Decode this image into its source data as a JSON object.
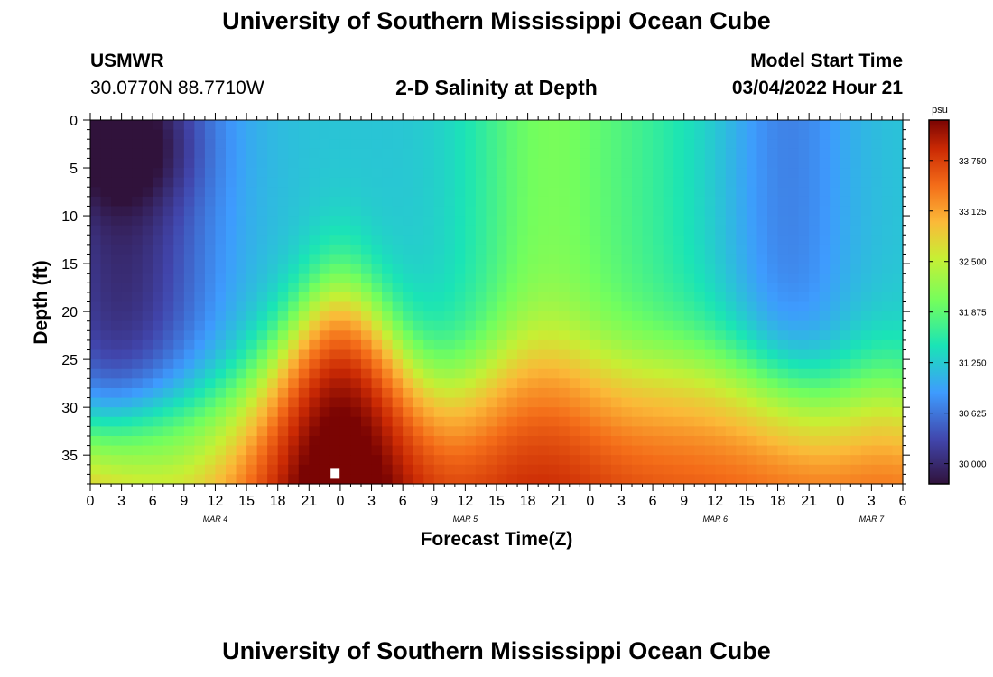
{
  "page": {
    "title_top": "University of Southern Mississippi Ocean Cube",
    "title_bottom": "University of Southern Mississippi Ocean Cube",
    "station": "USMWR",
    "coords": "30.0770N  88.7710W",
    "subtitle": "2-D Salinity at Depth",
    "model_start_label": "Model Start Time",
    "model_start_value": "03/04/2022 Hour 21"
  },
  "chart_data": {
    "type": "heatmap",
    "title": "2-D Salinity at Depth",
    "xlabel": "Forecast Time(Z)",
    "ylabel": "Depth (ft)",
    "x_range_hours": [
      0,
      78
    ],
    "y_range_ft": [
      0,
      38
    ],
    "x_ticks": [
      "0",
      "3",
      "6",
      "9",
      "12",
      "15",
      "18",
      "21",
      "0",
      "3",
      "6",
      "9",
      "12",
      "15",
      "18",
      "21",
      "0",
      "3",
      "6",
      "9",
      "12",
      "15",
      "18",
      "21",
      "0",
      "3",
      "6"
    ],
    "y_ticks": [
      0,
      5,
      10,
      15,
      20,
      25,
      30,
      35
    ],
    "date_labels": [
      {
        "text": "MAR 4",
        "hour": 12
      },
      {
        "text": "MAR 5",
        "hour": 36
      },
      {
        "text": "MAR 6",
        "hour": 60
      },
      {
        "text": "MAR 7",
        "hour": 75
      }
    ],
    "colorbar": {
      "unit": "psu",
      "min": 29.75,
      "max": 34.25,
      "ticks": [
        "33.750",
        "33.125",
        "32.500",
        "31.875",
        "31.250",
        "30.625",
        "30.000"
      ]
    },
    "marker": {
      "hour": 23.5,
      "depth_ft": 37
    },
    "description": "Fresher (~30 psu) water near surface early Mar 4, saline wedge (~34 psu) rising to ~20 ft around 00Z Mar 5, secondary bulge near 18Z Mar 5, halocline near 25-30 ft thereafter."
  }
}
